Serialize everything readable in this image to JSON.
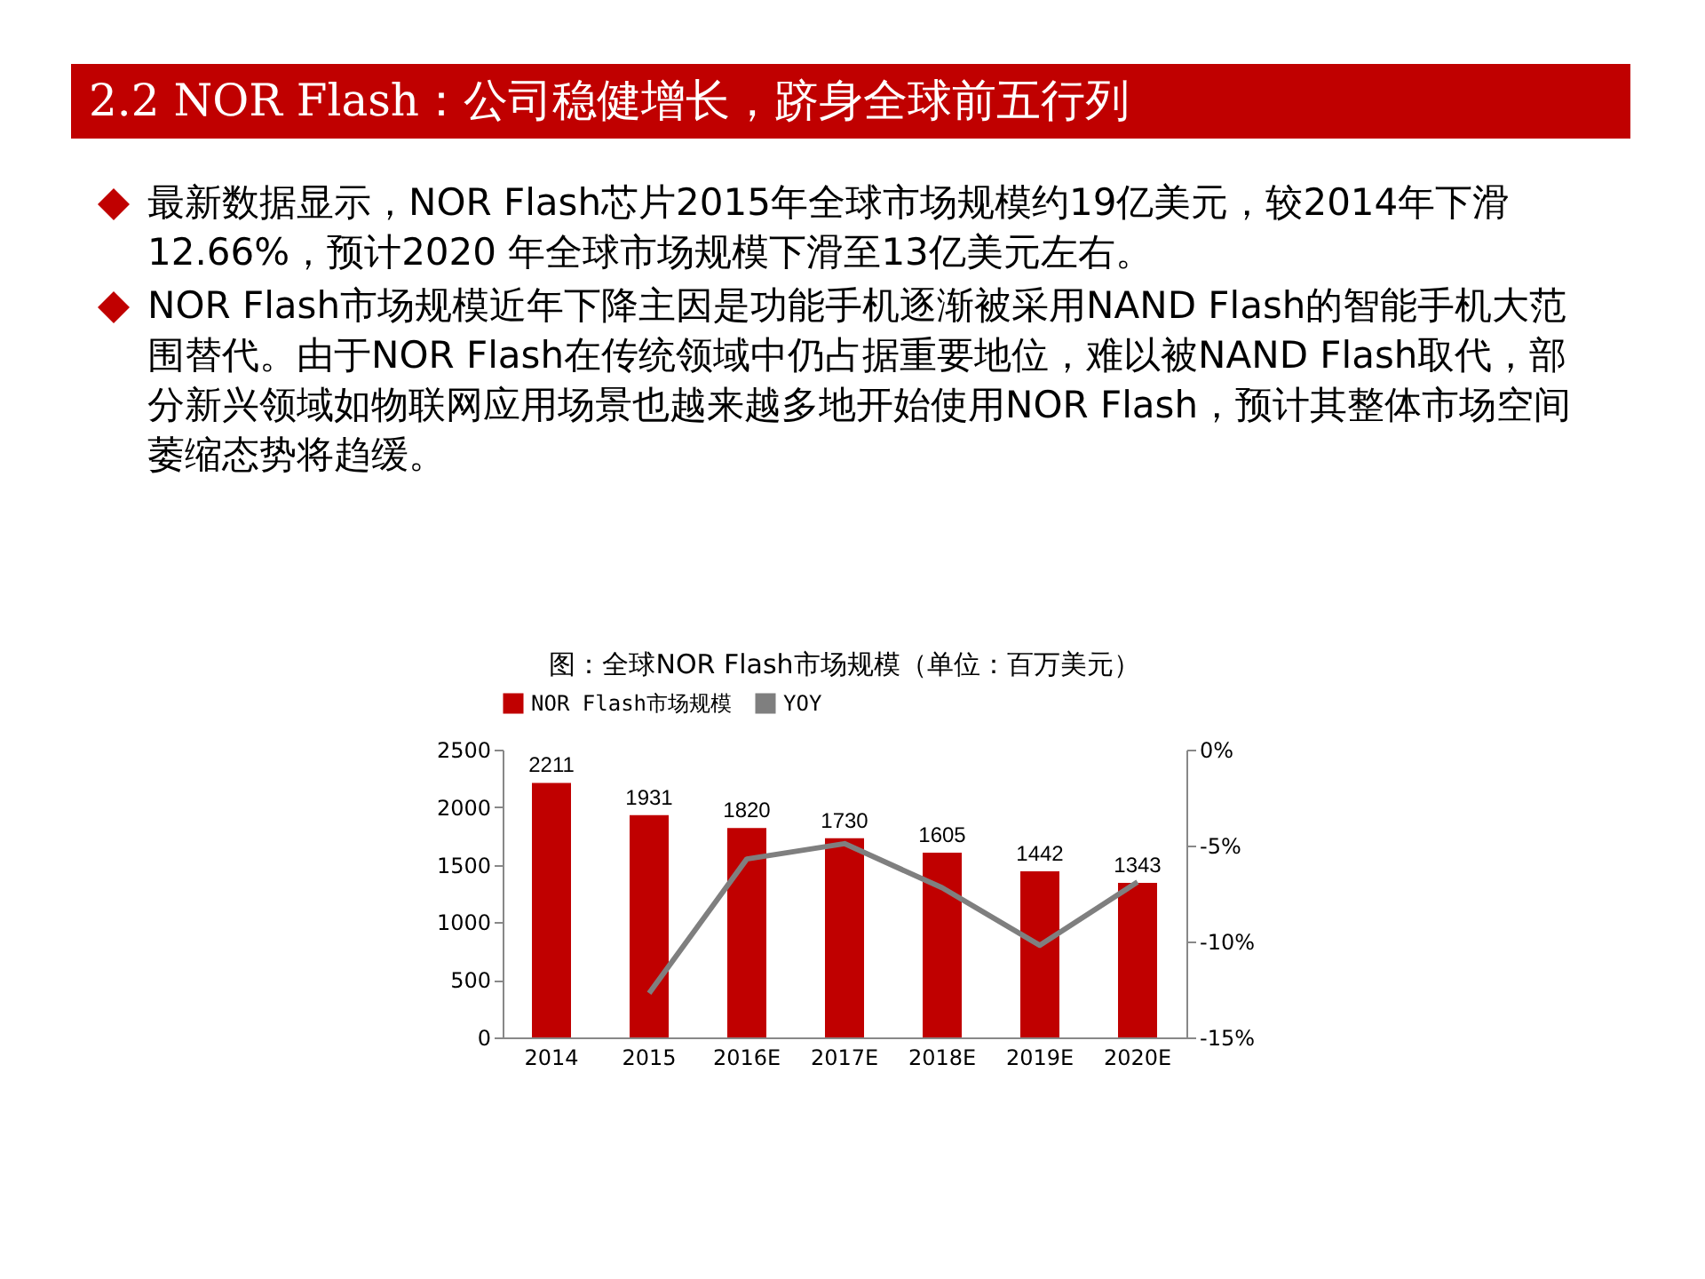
{
  "chart_data": {
    "type": "bar",
    "title": "2.2 NOR Flash：公司稳健增长，跻身全球前五行列",
    "subtitle": "图：全球NOR Flash市场规模（单位：百万美元）",
    "annotations": [
      "最新数据显示，NOR Flash芯片2015年全球市场规模约19亿美元，较2014年下滑12.66%，预计2020 年全球市场规模下滑至13亿美元左右。",
      "NOR Flash市场规模近年下降主因是功能手机逐渐被采用NAND Flash的智能手机大范围替代。由于NOR Flash在传统领域中仍占据重要地位，难以被NAND Flash取代，部分新兴领域如物联网应用场景也越来越多地开始使用NOR Flash，预计其整体市场空间萎缩态势将趋缓。"
    ],
    "categories": [
      "2014",
      "2015",
      "2016E",
      "2017E",
      "2018E",
      "2019E",
      "2020E"
    ],
    "series": [
      {
        "name": "NOR Flash市场规模",
        "color": "#c00000",
        "values": [
          2211,
          1931,
          1820,
          1730,
          1605,
          1442,
          1343
        ],
        "value_labels": [
          "2211",
          "1931",
          "1820",
          "1730",
          "1605",
          "1442",
          "1343"
        ]
      },
      {
        "name": "YOY",
        "type": "line",
        "axis": "y2",
        "color": "#7f7f7f",
        "values": [
          null,
          -12.7,
          -5.7,
          -4.9,
          -7.2,
          -10.2,
          -6.9
        ]
      }
    ],
    "ylim": [
      0,
      2500
    ],
    "yticks": [
      0,
      500,
      1000,
      1500,
      2000,
      2500
    ],
    "y2lim": [
      -15,
      0
    ],
    "y2ticks": [
      {
        "value": -15,
        "label": "-15%"
      },
      {
        "value": -10,
        "label": "-10%"
      },
      {
        "value": -5,
        "label": "-5%"
      },
      {
        "value": 0,
        "label": "0%"
      }
    ],
    "legend": "top",
    "grid": false,
    "marker": "none",
    "line_style": "solid"
  }
}
